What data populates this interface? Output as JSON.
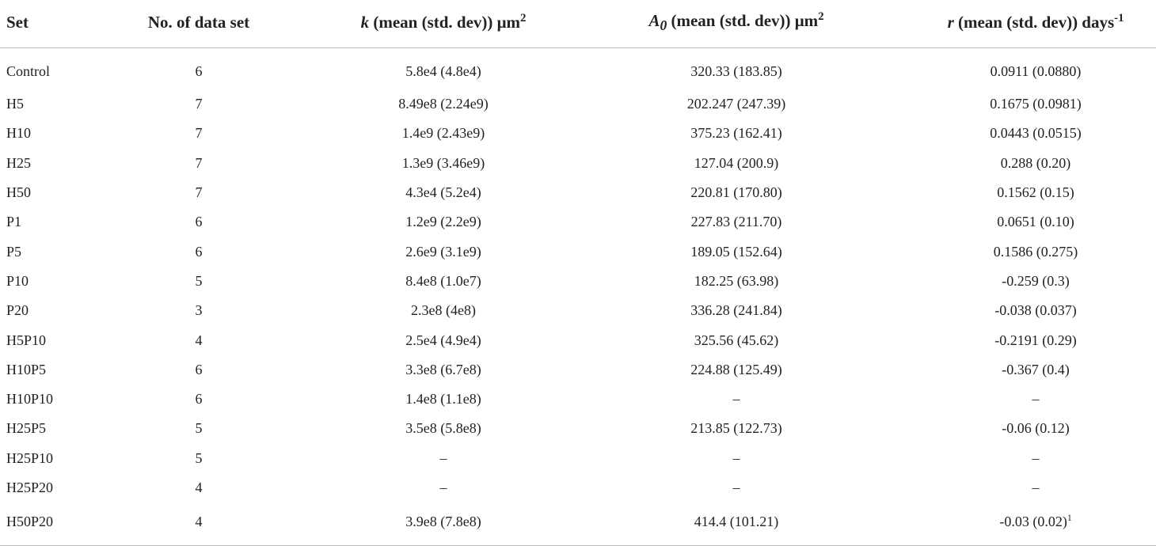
{
  "table": {
    "columns": [
      {
        "text": "Set"
      },
      {
        "text": "No. of data set"
      },
      {
        "var": "k",
        "text": " (mean (std. dev)) μm",
        "sup": "2"
      },
      {
        "var": "A",
        "sub": "0",
        "text": " (mean (std. dev)) μm",
        "sup": "2"
      },
      {
        "var": "r",
        "text": " (mean (std. dev)) days",
        "sup": "-1"
      }
    ],
    "rows": [
      [
        "Control",
        "6",
        "5.8e4 (4.8e4)",
        "320.33 (183.85)",
        "0.0911 (0.0880)"
      ],
      [
        "H5",
        "7",
        "8.49e8 (2.24e9)",
        "202.247 (247.39)",
        "0.1675 (0.0981)"
      ],
      [
        "H10",
        "7",
        "1.4e9 (2.43e9)",
        "375.23 (162.41)",
        "0.0443 (0.0515)"
      ],
      [
        "H25",
        "7",
        "1.3e9 (3.46e9)",
        "127.04 (200.9)",
        "0.288 (0.20)"
      ],
      [
        "H50",
        "7",
        "4.3e4 (5.2e4)",
        "220.81 (170.80)",
        "0.1562 (0.15)"
      ],
      [
        "P1",
        "6",
        "1.2e9 (2.2e9)",
        "227.83 (211.70)",
        "0.0651 (0.10)"
      ],
      [
        "P5",
        "6",
        "2.6e9 (3.1e9)",
        "189.05 (152.64)",
        "0.1586 (0.275)"
      ],
      [
        "P10",
        "5",
        "8.4e8 (1.0e7)",
        "182.25 (63.98)",
        "-0.259 (0.3)"
      ],
      [
        "P20",
        "3",
        "2.3e8 (4e8)",
        "336.28 (241.84)",
        "-0.038 (0.037)"
      ],
      [
        "H5P10",
        "4",
        "2.5e4 (4.9e4)",
        "325.56 (45.62)",
        "-0.2191 (0.29)"
      ],
      [
        "H10P5",
        "6",
        "3.3e8 (6.7e8)",
        "224.88 (125.49)",
        "-0.367 (0.4)"
      ],
      [
        "H10P10",
        "6",
        "1.4e8 (1.1e8)",
        "–",
        "–"
      ],
      [
        "H25P5",
        "5",
        "3.5e8 (5.8e8)",
        "213.85 (122.73)",
        "-0.06 (0.12)"
      ],
      [
        "H25P10",
        "5",
        "–",
        "–",
        "–"
      ],
      [
        "H25P20",
        "4",
        "–",
        "–",
        "–"
      ],
      [
        "H50P20",
        "4",
        "3.9e8 (7.8e8)",
        "414.4 (101.21)",
        {
          "text": "-0.03 (0.02)",
          "sup": "1"
        }
      ]
    ]
  }
}
